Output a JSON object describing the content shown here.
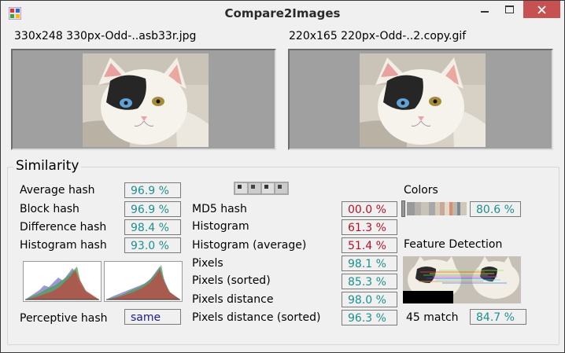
{
  "window": {
    "title": "Compare2Images"
  },
  "left_image": {
    "caption": "330x248 330px-Odd-..asb33r.jpg"
  },
  "right_image": {
    "caption": "220x165 220px-Odd-..2.copy.gif"
  },
  "similarity": {
    "title": "Similarity",
    "average_hash": {
      "label": "Average hash",
      "value": "96.9 %"
    },
    "block_hash": {
      "label": "Block hash",
      "value": "96.9 %"
    },
    "difference_hash": {
      "label": "Difference hash",
      "value": "98.4 %"
    },
    "histogram_hash": {
      "label": "Histogram hash",
      "value": "93.0 %"
    },
    "perceptive_hash": {
      "label": "Perceptive hash",
      "value": "same"
    },
    "md5_hash": {
      "label": "MD5 hash",
      "value": "00.0 %"
    },
    "histogram": {
      "label": "Histogram",
      "value": "61.3 %"
    },
    "histogram_average": {
      "label": "Histogram (average)",
      "value": "51.4 %"
    },
    "pixels": {
      "label": "Pixels",
      "value": "98.1 %"
    },
    "pixels_sorted": {
      "label": "Pixels (sorted)",
      "value": "85.3 %"
    },
    "pixels_distance": {
      "label": "Pixels distance",
      "value": "98.0 %"
    },
    "pixels_distance_sorted": {
      "label": "Pixels distance (sorted)",
      "value": "96.3 %"
    },
    "colors": {
      "label": "Colors",
      "value": "80.6 %"
    },
    "feature_detection": {
      "label": "Feature Detection",
      "match_text": "45 match",
      "value": "84.7 %"
    }
  },
  "colors": {
    "good": "#1e8f8f",
    "bad": "#b3122a",
    "neutral": "#1b1b8a",
    "close_button": "#c75050"
  }
}
